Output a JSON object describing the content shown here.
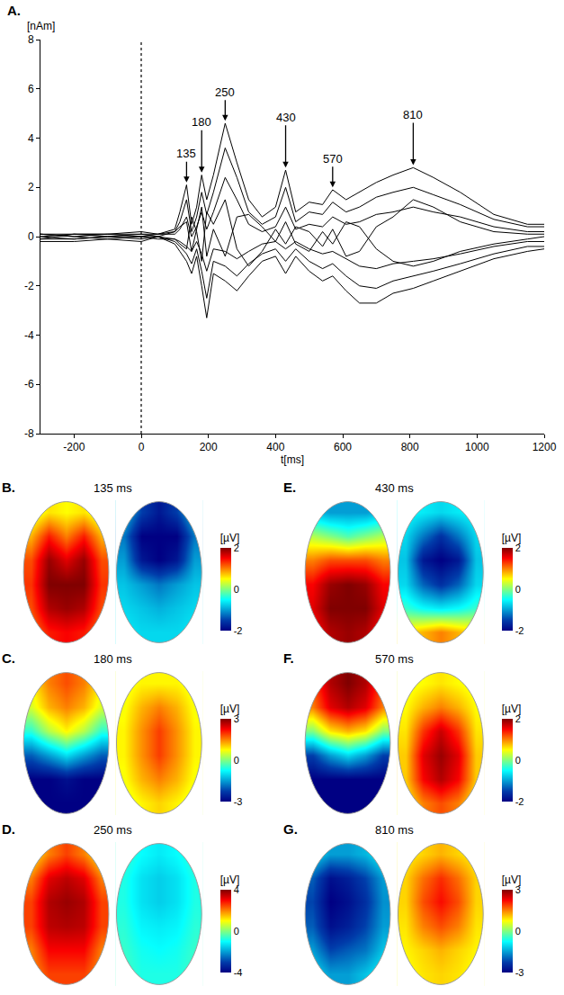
{
  "chart_data": [
    {
      "type": "line",
      "panel": "A.",
      "ylabel": "[nAm]",
      "xlabel": "t[ms]",
      "color": "#000000",
      "grid": false,
      "xlim": [
        -300,
        1200
      ],
      "ylim": [
        -8,
        8
      ],
      "xticks": [
        -200,
        0,
        200,
        400,
        600,
        800,
        1000,
        1200
      ],
      "yticks": [
        -8,
        -6,
        -4,
        -2,
        0,
        2,
        4,
        6,
        8
      ],
      "vline": 0,
      "x": [
        -300,
        -200,
        -100,
        0,
        50,
        100,
        115,
        135,
        150,
        165,
        180,
        195,
        215,
        250,
        285,
        320,
        360,
        400,
        430,
        460,
        500,
        540,
        570,
        610,
        650,
        700,
        750,
        810,
        870,
        950,
        1050,
        1150,
        1200
      ],
      "series": [
        {
          "values": [
            0.1,
            0.1,
            0.1,
            0.2,
            0.1,
            0.3,
            1.0,
            2.1,
            0.5,
            1.2,
            2.5,
            1.5,
            2.5,
            4.6,
            3.0,
            1.5,
            0.8,
            1.2,
            2.7,
            1.0,
            1.4,
            1.3,
            1.9,
            1.5,
            1.8,
            2.2,
            2.5,
            2.8,
            2.4,
            1.8,
            0.9,
            0.5,
            0.5
          ]
        },
        {
          "values": [
            -0.2,
            -0.2,
            -0.1,
            -0.2,
            0,
            -0.3,
            -0.6,
            -1.0,
            -1.5,
            -0.8,
            -2.0,
            -3.3,
            -1.5,
            -1.8,
            -2.2,
            -1.6,
            -1.0,
            -0.8,
            -1.5,
            -0.8,
            -1.4,
            -1.8,
            -1.6,
            -2.2,
            -2.7,
            -2.7,
            -2.3,
            -2.1,
            -1.8,
            -1.4,
            -0.9,
            -0.6,
            -0.5
          ]
        },
        {
          "values": [
            0.1,
            0.0,
            0.1,
            0.1,
            0.0,
            0.2,
            0.6,
            1.5,
            0.2,
            0.8,
            1.8,
            0.9,
            1.8,
            3.6,
            2.4,
            1.0,
            0.5,
            0.8,
            2.0,
            0.6,
            1.0,
            0.9,
            1.4,
            1.0,
            1.2,
            1.6,
            1.8,
            2.0,
            1.7,
            1.3,
            0.7,
            0.4,
            0.4
          ]
        },
        {
          "values": [
            -0.1,
            -0.1,
            0.0,
            -0.1,
            0.0,
            -0.2,
            -0.4,
            -0.7,
            -1.1,
            -0.5,
            -1.4,
            -2.5,
            -1.0,
            -1.2,
            -1.6,
            -1.1,
            -0.7,
            -0.5,
            -1.0,
            -0.5,
            -1.0,
            -1.3,
            -1.1,
            -1.6,
            -2.0,
            -2.1,
            -1.8,
            -1.6,
            -1.4,
            -1.1,
            -0.7,
            -0.4,
            -0.4
          ]
        },
        {
          "values": [
            0.0,
            0.1,
            0.0,
            0.1,
            0.1,
            0.1,
            0.3,
            0.8,
            0.0,
            0.4,
            1.0,
            0.3,
            1.0,
            2.4,
            1.5,
            0.5,
            0.2,
            0.4,
            1.2,
            0.3,
            0.5,
            0.4,
            0.8,
            0.5,
            0.6,
            0.9,
            1.0,
            1.2,
            1.0,
            0.8,
            0.4,
            0.2,
            0.2
          ]
        },
        {
          "values": [
            0.0,
            -0.1,
            0.0,
            0.0,
            -0.1,
            -0.1,
            -0.2,
            -0.4,
            -0.6,
            -0.2,
            -0.7,
            -1.4,
            -0.5,
            -0.6,
            -0.9,
            -0.6,
            -0.3,
            -0.2,
            -0.5,
            -0.2,
            -0.5,
            -0.7,
            -0.6,
            -0.9,
            -1.2,
            -1.3,
            -1.1,
            -1.0,
            -0.9,
            -0.7,
            -0.4,
            -0.2,
            -0.2
          ]
        },
        {
          "values": [
            0.1,
            0.0,
            -0.1,
            0.0,
            0.0,
            -0.1,
            -0.3,
            -0.5,
            0.8,
            0.2,
            -1.0,
            1.0,
            0.5,
            1.5,
            -0.5,
            -1.2,
            -0.6,
            0.3,
            -0.3,
            0.4,
            0.2,
            -0.4,
            0.3,
            -0.8,
            -0.6,
            0.4,
            0.8,
            1.5,
            1.2,
            0.6,
            0.2,
            0.1,
            0.1
          ]
        },
        {
          "values": [
            -0.1,
            0.1,
            0.1,
            0.0,
            0.1,
            0.2,
            0.4,
            0.6,
            -0.6,
            0.3,
            1.2,
            -0.8,
            0.3,
            -0.8,
            0.8,
            0.9,
            0.4,
            -0.2,
            0.6,
            -0.3,
            -0.6,
            0.2,
            -0.3,
            0.6,
            0.4,
            -0.5,
            -1.0,
            -1.2,
            -1.0,
            -0.6,
            -0.3,
            -0.1,
            0.0
          ]
        }
      ],
      "annotations": [
        {
          "x": 135,
          "y": 2.2,
          "text": "135"
        },
        {
          "x": 180,
          "y": 2.6,
          "text": "180"
        },
        {
          "x": 250,
          "y": 4.7,
          "text": "250"
        },
        {
          "x": 430,
          "y": 2.8,
          "text": "430"
        },
        {
          "x": 570,
          "y": 2.0,
          "text": "570"
        },
        {
          "x": 810,
          "y": 2.9,
          "text": "810"
        }
      ]
    },
    {
      "type": "heatmap",
      "panel": "B.",
      "title": "135 ms",
      "colorbar_title": "[µV]",
      "color": "Jet",
      "tick_labels": false,
      "zlim": [
        -2,
        2
      ],
      "zticks": [
        2,
        0,
        -2
      ],
      "maps": [
        [
          [
            0.3,
            0.6,
            0.5,
            0.6,
            0.3
          ],
          [
            0.8,
            1.4,
            1.0,
            1.4,
            0.8
          ],
          [
            1.2,
            1.9,
            1.6,
            1.9,
            1.2
          ],
          [
            1.3,
            2.0,
            2.0,
            2.0,
            1.3
          ],
          [
            1.2,
            1.8,
            1.9,
            1.8,
            1.2
          ],
          [
            1.0,
            1.4,
            1.5,
            1.4,
            1.0
          ]
        ],
        [
          [
            -0.8,
            -1.5,
            -1.8,
            -1.5,
            -0.8
          ],
          [
            -1.2,
            -2.0,
            -2.0,
            -2.0,
            -1.2
          ],
          [
            -1.0,
            -1.8,
            -2.0,
            -1.8,
            -1.0
          ],
          [
            -0.8,
            -1.0,
            -1.2,
            -1.0,
            -0.8
          ],
          [
            -0.7,
            -0.8,
            -0.9,
            -0.8,
            -0.7
          ],
          [
            -0.6,
            -0.7,
            -0.7,
            -0.7,
            -0.6
          ]
        ]
      ]
    },
    {
      "type": "heatmap",
      "panel": "C.",
      "title": "180 ms",
      "colorbar_title": "[µV]",
      "color": "Jet",
      "tick_labels": false,
      "zlim": [
        -3,
        3
      ],
      "zticks": [
        3,
        0,
        -3
      ],
      "maps": [
        [
          [
            0.8,
            1.5,
            1.8,
            1.5,
            0.8
          ],
          [
            0.5,
            1.2,
            1.5,
            1.2,
            0.5
          ],
          [
            -0.5,
            0.3,
            0.8,
            0.3,
            -0.5
          ],
          [
            -2.0,
            -1.5,
            -1.0,
            -1.5,
            -2.0
          ],
          [
            -3.0,
            -3.0,
            -2.8,
            -3.0,
            -3.0
          ],
          [
            -3.0,
            -3.0,
            -3.0,
            -3.0,
            -3.0
          ]
        ],
        [
          [
            0.6,
            0.8,
            0.8,
            0.8,
            0.6
          ],
          [
            0.7,
            1.2,
            1.5,
            1.2,
            0.7
          ],
          [
            0.8,
            1.4,
            1.9,
            1.4,
            0.8
          ],
          [
            0.8,
            1.4,
            1.9,
            1.4,
            0.8
          ],
          [
            0.7,
            1.2,
            1.5,
            1.2,
            0.7
          ],
          [
            0.5,
            0.8,
            1.0,
            0.8,
            0.5
          ]
        ]
      ]
    },
    {
      "type": "heatmap",
      "panel": "D.",
      "title": "250 ms",
      "colorbar_title": "[µV]",
      "color": "Jet",
      "tick_labels": false,
      "zlim": [
        -4,
        4
      ],
      "zticks": [
        4,
        0,
        -4
      ],
      "maps": [
        [
          [
            1.0,
            2.0,
            2.5,
            2.0,
            1.0
          ],
          [
            2.0,
            3.2,
            3.5,
            3.2,
            2.0
          ],
          [
            2.5,
            3.6,
            3.8,
            3.6,
            2.5
          ],
          [
            2.5,
            3.5,
            3.6,
            3.5,
            2.5
          ],
          [
            2.0,
            3.0,
            3.0,
            3.0,
            2.0
          ],
          [
            1.8,
            2.5,
            2.5,
            2.5,
            1.8
          ]
        ],
        [
          [
            -0.6,
            -1.0,
            -1.2,
            -1.0,
            -0.6
          ],
          [
            -0.8,
            -1.3,
            -1.5,
            -1.3,
            -0.8
          ],
          [
            -0.8,
            -1.3,
            -1.5,
            -1.3,
            -0.8
          ],
          [
            -0.7,
            -1.1,
            -1.2,
            -1.1,
            -0.7
          ],
          [
            -0.6,
            -0.9,
            -1.0,
            -0.9,
            -0.6
          ],
          [
            -0.5,
            -0.8,
            -0.8,
            -0.8,
            -0.5
          ]
        ]
      ]
    },
    {
      "type": "heatmap",
      "panel": "E.",
      "title": "430 ms",
      "colorbar_title": "[µV]",
      "color": "Jet",
      "tick_labels": false,
      "zlim": [
        -2,
        2
      ],
      "zticks": [
        2,
        0,
        -2
      ],
      "maps": [
        [
          [
            -0.8,
            -1.0,
            -1.0,
            -1.0,
            -0.8
          ],
          [
            0.2,
            0.0,
            -0.2,
            0.0,
            0.2
          ],
          [
            1.0,
            1.2,
            1.2,
            1.2,
            1.0
          ],
          [
            1.5,
            1.9,
            2.0,
            1.9,
            1.5
          ],
          [
            1.6,
            2.0,
            2.0,
            2.0,
            1.6
          ],
          [
            1.4,
            1.8,
            1.9,
            1.8,
            1.4
          ]
        ],
        [
          [
            -0.5,
            -0.6,
            -0.7,
            -0.6,
            -0.5
          ],
          [
            -0.7,
            -1.2,
            -1.6,
            -1.2,
            -0.7
          ],
          [
            -0.8,
            -1.8,
            -2.0,
            -1.8,
            -0.8
          ],
          [
            -0.7,
            -1.3,
            -1.6,
            -1.3,
            -0.7
          ],
          [
            -0.3,
            -0.5,
            -0.6,
            -0.5,
            -0.3
          ],
          [
            0.6,
            0.8,
            1.0,
            0.8,
            0.6
          ]
        ]
      ]
    },
    {
      "type": "heatmap",
      "panel": "F.",
      "title": "570 ms",
      "colorbar_title": "[µV]",
      "color": "Jet",
      "tick_labels": false,
      "zlim": [
        -2,
        2
      ],
      "zticks": [
        2,
        0,
        -2
      ],
      "maps": [
        [
          [
            1.2,
            1.8,
            2.0,
            1.8,
            1.2
          ],
          [
            1.0,
            1.6,
            1.8,
            1.6,
            1.0
          ],
          [
            0.0,
            0.6,
            0.8,
            0.6,
            0.0
          ],
          [
            -1.5,
            -1.0,
            -0.7,
            -1.0,
            -1.5
          ],
          [
            -2.0,
            -2.0,
            -2.0,
            -2.0,
            -2.0
          ],
          [
            -2.0,
            -2.0,
            -2.0,
            -2.0,
            -2.0
          ]
        ],
        [
          [
            0.4,
            0.5,
            0.6,
            0.5,
            0.4
          ],
          [
            0.5,
            0.8,
            1.0,
            0.8,
            0.5
          ],
          [
            0.6,
            1.3,
            1.7,
            1.3,
            0.6
          ],
          [
            0.7,
            1.6,
            1.9,
            1.6,
            0.7
          ],
          [
            0.7,
            1.5,
            1.8,
            1.5,
            0.7
          ],
          [
            0.5,
            1.0,
            1.2,
            1.0,
            0.5
          ]
        ]
      ]
    },
    {
      "type": "heatmap",
      "panel": "G.",
      "title": "810 ms",
      "colorbar_title": "[µV]",
      "color": "Jet",
      "tick_labels": false,
      "zlim": [
        -3,
        3
      ],
      "zticks": [
        3,
        0,
        -3
      ],
      "maps": [
        [
          [
            -1.0,
            -1.5,
            -1.5,
            -1.3,
            -0.8
          ],
          [
            -2.0,
            -2.8,
            -2.6,
            -2.2,
            -1.5
          ],
          [
            -2.2,
            -3.0,
            -2.8,
            -2.4,
            -1.6
          ],
          [
            -2.0,
            -2.8,
            -2.6,
            -2.2,
            -1.5
          ],
          [
            -1.5,
            -2.2,
            -2.0,
            -1.8,
            -1.2
          ],
          [
            -1.0,
            -1.5,
            -1.5,
            -1.2,
            -0.8
          ]
        ],
        [
          [
            0.8,
            1.0,
            1.2,
            1.0,
            0.8
          ],
          [
            1.0,
            1.6,
            2.0,
            1.6,
            1.0
          ],
          [
            1.0,
            1.8,
            2.2,
            1.8,
            1.0
          ],
          [
            0.9,
            1.5,
            1.8,
            1.5,
            0.9
          ],
          [
            0.8,
            1.0,
            1.2,
            1.0,
            0.8
          ],
          [
            0.7,
            0.9,
            1.0,
            0.9,
            0.7
          ]
        ]
      ]
    }
  ]
}
